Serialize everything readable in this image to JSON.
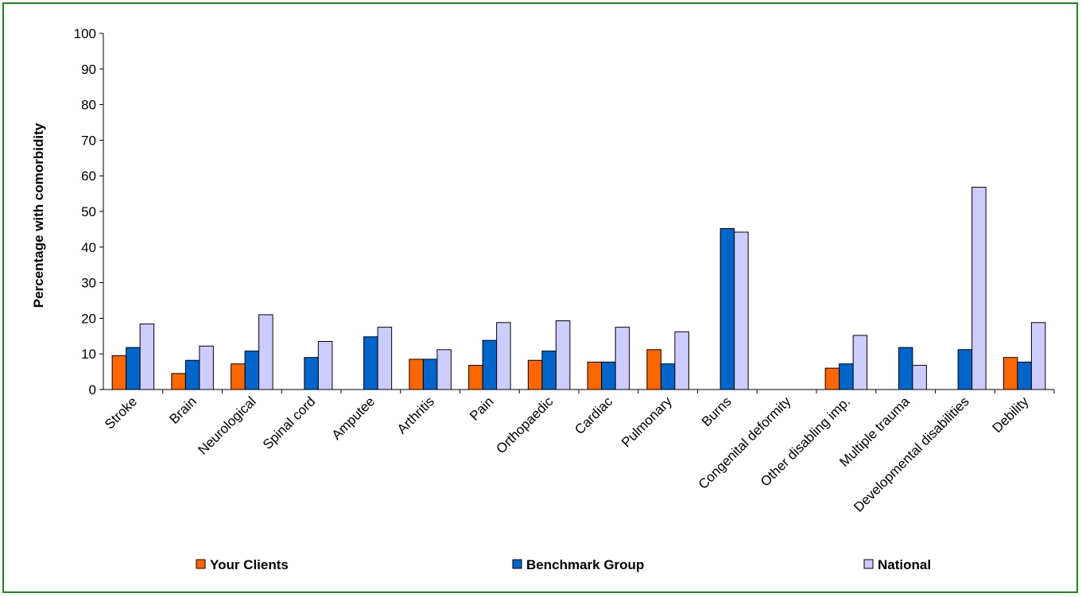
{
  "chart_data": {
    "type": "bar",
    "title": "",
    "xlabel": "",
    "ylabel": "Percentage with comorbidity",
    "ylim": [
      0,
      100
    ],
    "yticks": [
      0,
      10,
      20,
      30,
      40,
      50,
      60,
      70,
      80,
      90,
      100
    ],
    "grid": false,
    "legend_position": "bottom",
    "categories": [
      "Stroke",
      "Brain",
      "Neurological",
      "Spinal cord",
      "Amputee",
      "Arthritis",
      "Pain",
      "Orthopaedic",
      "Cardiac",
      "Pulmonary",
      "Burns",
      "Congenital deformity",
      "Other disabling imp.",
      "Multiple trauma",
      "Developmental disabilities",
      "Debility"
    ],
    "series": [
      {
        "name": "Your Clients",
        "color": "#ff6600",
        "values": [
          9.5,
          4.5,
          7.2,
          null,
          null,
          8.5,
          6.8,
          8.2,
          7.7,
          11.2,
          null,
          null,
          6.0,
          null,
          null,
          9.0
        ]
      },
      {
        "name": "Benchmark Group",
        "color": "#0066cc",
        "values": [
          11.8,
          8.2,
          10.8,
          9.0,
          14.8,
          8.5,
          13.8,
          10.8,
          7.7,
          7.2,
          45.2,
          null,
          7.2,
          11.8,
          11.2,
          7.7
        ]
      },
      {
        "name": "National",
        "color": "#ccccff",
        "values": [
          18.4,
          12.2,
          21.0,
          13.5,
          17.5,
          11.2,
          18.8,
          19.3,
          17.5,
          16.2,
          44.2,
          null,
          15.2,
          6.8,
          56.8,
          18.8
        ]
      }
    ]
  }
}
